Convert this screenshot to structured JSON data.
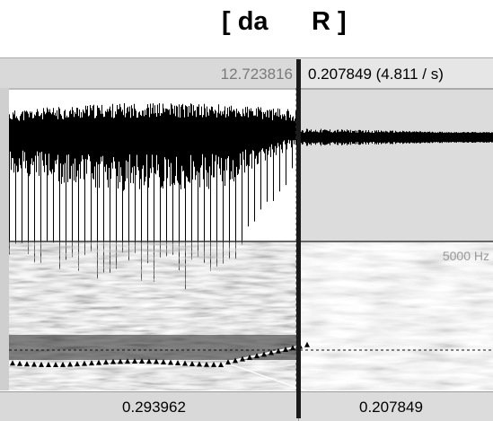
{
  "annotation": {
    "left_label": "[ da",
    "right_label": "R ]"
  },
  "top_bar": {
    "cursor_time": "12.723816",
    "selection_duration": "0.207849 (4.811 / s)"
  },
  "spectrogram": {
    "max_frequency_label": "5000 Hz"
  },
  "bottom_bar": {
    "left_interval": "0.293962",
    "right_interval": "0.207849"
  },
  "colors": {
    "selection_bg": "#dcdcdc",
    "waveform": "#000000",
    "pitch_track": "#ffffff",
    "boundary": "#1a1a1a"
  }
}
